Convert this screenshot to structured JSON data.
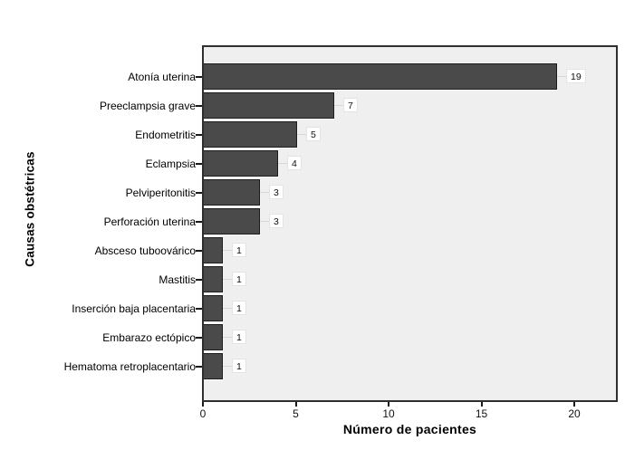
{
  "chart_data": {
    "type": "bar",
    "orientation": "horizontal",
    "title": "",
    "xlabel": "Número de pacientes",
    "ylabel": "Causas obstétricas",
    "categories": [
      "Atonía uterina",
      "Preeclampsia grave",
      "Endometritis",
      "Eclampsia",
      "Pelviperitonitis",
      "Perforación uterina",
      "Absceso tuboovárico",
      "Mastitis",
      "Inserción baja placentaria",
      "Embarazo ectópico",
      "Hematoma retroplacentario"
    ],
    "values": [
      19,
      7,
      5,
      4,
      3,
      3,
      1,
      1,
      1,
      1,
      1
    ],
    "x_ticks": [
      0,
      5,
      10,
      15,
      20
    ],
    "xlim": [
      0,
      22.4
    ],
    "grid": false,
    "legend": "none",
    "value_labels_shown": true,
    "colors": {
      "bar_fill": "#4a4a4a",
      "bar_border": "#1c1c1c",
      "plot_background": "#efefef",
      "plot_border": "#2f2f2f",
      "value_label_background": "#ffffff",
      "text": "#000000"
    }
  }
}
